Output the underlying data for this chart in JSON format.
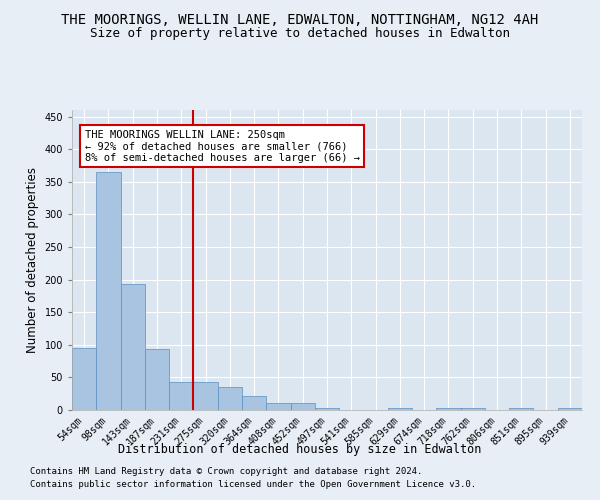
{
  "title": "THE MOORINGS, WELLIN LANE, EDWALTON, NOTTINGHAM, NG12 4AH",
  "subtitle": "Size of property relative to detached houses in Edwalton",
  "xlabel": "Distribution of detached houses by size in Edwalton",
  "ylabel": "Number of detached properties",
  "footnote1": "Contains HM Land Registry data © Crown copyright and database right 2024.",
  "footnote2": "Contains public sector information licensed under the Open Government Licence v3.0.",
  "categories": [
    "54sqm",
    "98sqm",
    "143sqm",
    "187sqm",
    "231sqm",
    "275sqm",
    "320sqm",
    "364sqm",
    "408sqm",
    "452sqm",
    "497sqm",
    "541sqm",
    "585sqm",
    "629sqm",
    "674sqm",
    "718sqm",
    "762sqm",
    "806sqm",
    "851sqm",
    "895sqm",
    "939sqm"
  ],
  "values": [
    95,
    365,
    193,
    93,
    43,
    43,
    35,
    22,
    10,
    10,
    3,
    0,
    0,
    3,
    0,
    3,
    3,
    0,
    3,
    0,
    3
  ],
  "bar_color": "#a8c4e0",
  "bar_edge_color": "#5a8fbf",
  "vline_x_idx": 4.5,
  "vline_color": "#cc0000",
  "ylim": [
    0,
    460
  ],
  "yticks": [
    0,
    50,
    100,
    150,
    200,
    250,
    300,
    350,
    400,
    450
  ],
  "annotation_title": "THE MOORINGS WELLIN LANE: 250sqm",
  "annotation_line1": "← 92% of detached houses are smaller (766)",
  "annotation_line2": "8% of semi-detached houses are larger (66) →",
  "annotation_box_color": "#ffffff",
  "annotation_box_edge": "#cc0000",
  "bg_color": "#e8eef5",
  "plot_bg_color": "#dce6f0",
  "grid_color": "#ffffff",
  "title_fontsize": 10,
  "subtitle_fontsize": 9,
  "tick_fontsize": 7,
  "label_fontsize": 8.5,
  "annot_fontsize": 7.5
}
